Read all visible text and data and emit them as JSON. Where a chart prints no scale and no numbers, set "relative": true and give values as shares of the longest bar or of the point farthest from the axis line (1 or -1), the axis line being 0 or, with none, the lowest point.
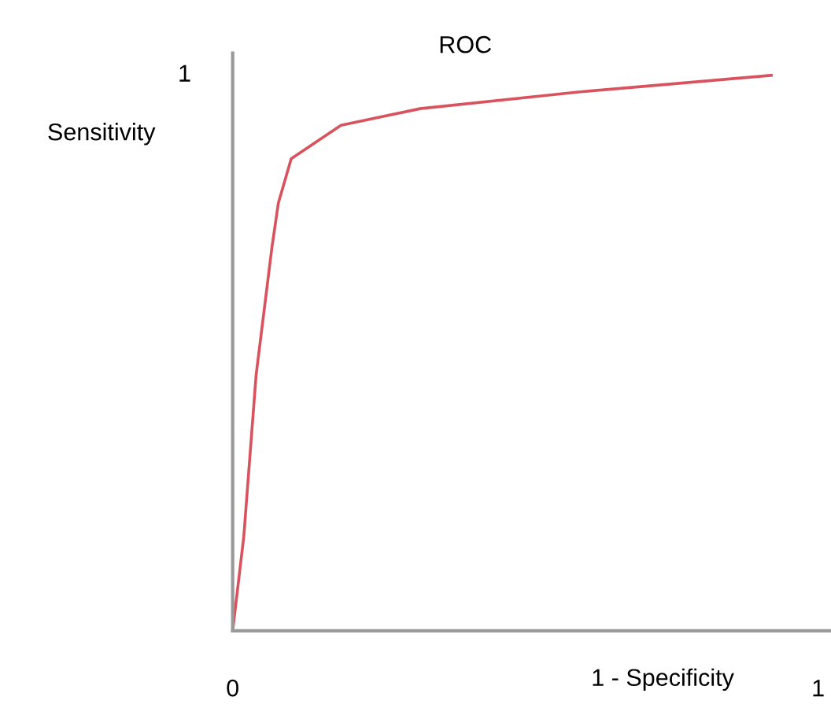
{
  "chart_data": {
    "type": "line",
    "xlabel": "1 - Specificity",
    "ylabel": "Sensitivity",
    "x": [
      0,
      0.019,
      0.04,
      0.067,
      0.078,
      0.1,
      0.185,
      0.32,
      0.59,
      0.92
    ],
    "series": [
      {
        "name": "ROC",
        "color": "#d9535f",
        "values": [
          0,
          0.17,
          0.46,
          0.69,
          0.77,
          0.85,
          0.91,
          0.94,
          0.97,
          1.0
        ]
      }
    ],
    "xlim": [
      0,
      1.02
    ],
    "xticks": [
      0,
      1
    ],
    "relative": true,
    "annotations": [
      "1"
    ],
    "grid": false,
    "legend": false,
    "marker": "none",
    "line_style": "solid"
  }
}
